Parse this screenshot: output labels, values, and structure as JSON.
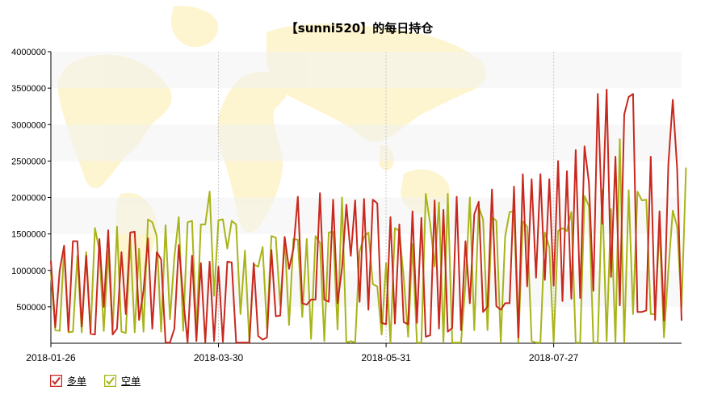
{
  "chart_data": {
    "type": "line",
    "title": "【sunni520】的每日持仓",
    "yticks": [
      "500000",
      "1000000",
      "1500000",
      "2000000",
      "2500000",
      "3000000",
      "3500000",
      "4000000"
    ],
    "ylim": [
      0,
      4000000
    ],
    "xticks": [
      "2018-01-26",
      "2018-03-30",
      "2018-05-31",
      "2018-07-27"
    ],
    "grid": true,
    "legend_position": "bottom-left",
    "series": [
      {
        "name": "多单",
        "color": "#c8281e",
        "values": [
          1130000,
          220000,
          1000000,
          1340000,
          170000,
          1400000,
          1400000,
          230000,
          1200000,
          130000,
          120000,
          1430000,
          500000,
          1550000,
          120000,
          200000,
          1250000,
          400000,
          1520000,
          1530000,
          320000,
          720000,
          1440000,
          200000,
          1250000,
          1150000,
          10000,
          10000,
          200000,
          1350000,
          620000,
          10000,
          1200000,
          30000,
          1100000,
          10000,
          1120000,
          30000,
          1050000,
          20000,
          1120000,
          1110000,
          10000,
          10000,
          10000,
          10000,
          1100000,
          100000,
          50000,
          80000,
          1280000,
          370000,
          380000,
          1460000,
          1020000,
          1300000,
          2010000,
          550000,
          530000,
          600000,
          600000,
          2060000,
          600000,
          570000,
          1970000,
          550000,
          1030000,
          1900000,
          1200000,
          1960000,
          570000,
          1980000,
          460000,
          1970000,
          1920000,
          280000,
          260000,
          1730000,
          270000,
          1630000,
          290000,
          260000,
          1810000,
          280000,
          1720000,
          90000,
          110000,
          1960000,
          200000,
          1830000,
          160000,
          210000,
          2010000,
          180000,
          1400000,
          550000,
          1770000,
          1940000,
          430000,
          500000,
          2110000,
          510000,
          460000,
          550000,
          550000,
          2150000,
          80000,
          2320000,
          780000,
          2250000,
          900000,
          2320000,
          870000,
          2250000,
          790000,
          2500000,
          580000,
          2360000,
          610000,
          2650000,
          620000,
          2700000,
          2200000,
          720000,
          3420000,
          1640000,
          3480000,
          910000,
          2560000,
          520000,
          3140000,
          3380000,
          3420000,
          430000,
          430000,
          450000,
          2560000,
          320000,
          1810000,
          310000,
          2450000,
          3340000,
          2400000,
          310000
        ]
      },
      {
        "name": "空单",
        "color": "#a8b418",
        "values": [
          960000,
          180000,
          170000,
          1290000,
          150000,
          160000,
          1200000,
          150000,
          1250000,
          150000,
          1580000,
          1270000,
          170000,
          1260000,
          160000,
          1600000,
          160000,
          140000,
          1420000,
          150000,
          1300000,
          160000,
          1700000,
          1660000,
          1470000,
          160000,
          1620000,
          330000,
          1180000,
          1730000,
          170000,
          1660000,
          1680000,
          150000,
          1630000,
          1630000,
          2080000,
          650000,
          1690000,
          1700000,
          1300000,
          1680000,
          1630000,
          400000,
          1270000,
          10000,
          1080000,
          1050000,
          1320000,
          200000,
          1470000,
          1450000,
          520000,
          1450000,
          250000,
          1430000,
          1420000,
          360000,
          1430000,
          60000,
          1470000,
          1380000,
          30000,
          1520000,
          1530000,
          190000,
          2000000,
          10000,
          30000,
          10000,
          1260000,
          1460000,
          1520000,
          810000,
          780000,
          120000,
          1100000,
          10000,
          1580000,
          1540000,
          900000,
          90000,
          1360000,
          10000,
          10000,
          2050000,
          1640000,
          1050000,
          1930000,
          10000,
          2050000,
          10000,
          10000,
          10000,
          820000,
          2000000,
          180000,
          1870000,
          1700000,
          180000,
          1730000,
          1680000,
          10000,
          1460000,
          1800000,
          1810000,
          10000,
          1670000,
          1600000,
          30000,
          10000,
          10000,
          1520000,
          1320000,
          10000,
          1540000,
          1580000,
          1540000,
          1800000,
          10000,
          10000,
          2020000,
          1880000,
          10000,
          10000,
          2100000,
          30000,
          1840000,
          10000,
          2800000,
          10000,
          2100000,
          400000,
          2080000,
          1960000,
          1970000,
          400000,
          400000,
          1590000,
          80000,
          1000000,
          1820000,
          1600000,
          500000,
          2410000
        ]
      }
    ]
  }
}
